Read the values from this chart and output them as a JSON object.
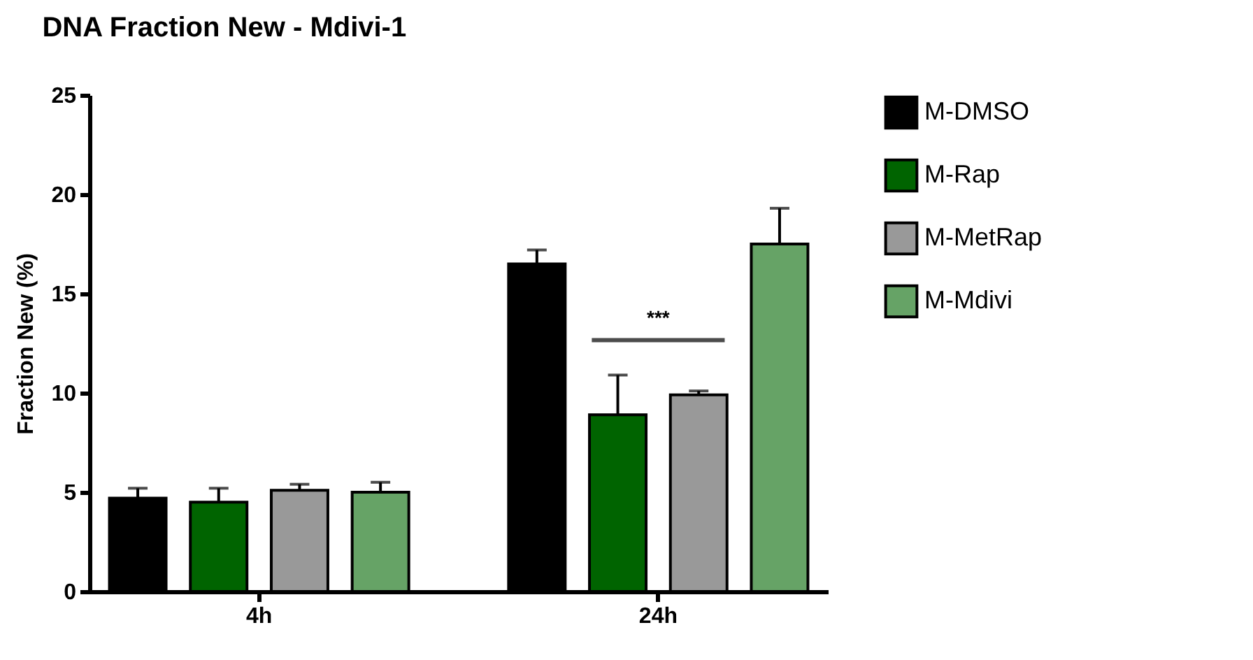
{
  "chart_data": {
    "type": "bar",
    "title": "DNA Fraction New - Mdivi-1",
    "ylabel": "Fraction New (%)",
    "categories": [
      "4h",
      "24h"
    ],
    "series": [
      {
        "name": "M-DMSO",
        "color": "#000000",
        "values": [
          4.7,
          16.5
        ],
        "errors": [
          0.5,
          0.7
        ]
      },
      {
        "name": "M-Rap",
        "color": "#006400",
        "values": [
          4.5,
          8.9
        ],
        "errors": [
          0.7,
          2.0
        ]
      },
      {
        "name": "M-MetRap",
        "color": "#999999",
        "values": [
          5.1,
          9.9
        ],
        "errors": [
          0.3,
          0.2
        ]
      },
      {
        "name": "M-Mdivi",
        "color": "#66a366",
        "values": [
          5.0,
          17.5
        ],
        "errors": [
          0.5,
          1.8
        ]
      }
    ],
    "ylim": [
      0,
      25
    ],
    "yticks": [
      0,
      5,
      10,
      15,
      20,
      25
    ],
    "grid": false,
    "legend": "right",
    "annotations": [
      "***"
    ]
  }
}
